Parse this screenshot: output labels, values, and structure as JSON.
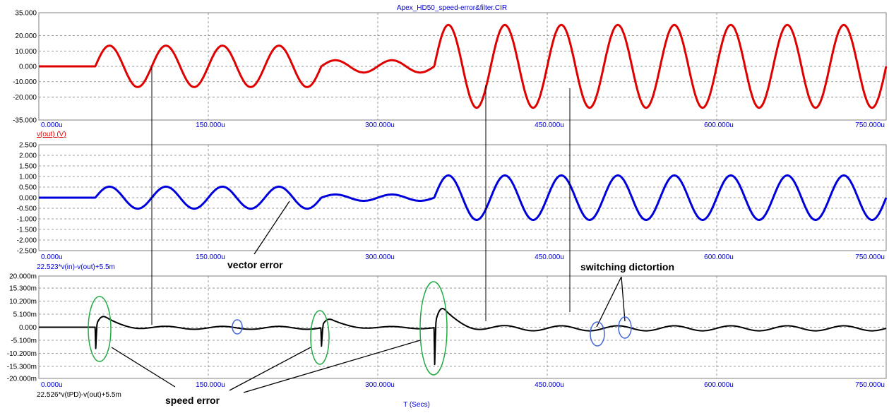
{
  "window": {
    "title": "Apex_HD50_speed-error&filter.CIR",
    "x_axis_label": "T (Secs)"
  },
  "annotations": {
    "vector_error": "vector error",
    "switching_distortion": "switching dictortion",
    "speed_error": "speed error"
  },
  "colors": {
    "trace1": "#e00000",
    "trace2": "#0000dd",
    "trace3": "#000000",
    "tick_blue": "#0000cc",
    "circle_green": "#22aa44",
    "circle_blue": "#4466dd"
  },
  "chart_data": [
    {
      "type": "line",
      "name": "v(out) (V)",
      "color": "#e00000",
      "x_unit": "s",
      "xlim": [
        0,
        0.00075
      ],
      "xticks": [
        "0.000u",
        "150.000u",
        "300.000u",
        "450.000u",
        "600.000u",
        "750.000u"
      ],
      "ylim": [
        -35,
        35
      ],
      "yticks": [
        "35.000",
        "20.000",
        "10.000",
        "0.000",
        "-10.000",
        "-20.000",
        "-35.000"
      ],
      "ytick_values": [
        35,
        20,
        10,
        0,
        -10,
        -20,
        -35
      ],
      "signal": [
        {
          "from": 0,
          "to": 5e-05,
          "kind": "flat",
          "amplitude": 0,
          "period": 5e-05
        },
        {
          "from": 5e-05,
          "to": 0.00025,
          "kind": "sine",
          "amplitude": 13.5,
          "period": 5e-05
        },
        {
          "from": 0.00025,
          "to": 0.00035,
          "kind": "sine",
          "amplitude": 4,
          "period": 5e-05
        },
        {
          "from": 0.00035,
          "to": 0.00075,
          "kind": "sine",
          "amplitude": 27,
          "period": 5e-05
        }
      ],
      "grid": true
    },
    {
      "type": "line",
      "name": "22.523*v(in)-v(out)+5.5m",
      "color": "#0000dd",
      "x_unit": "s",
      "xlim": [
        0,
        0.00075
      ],
      "xticks": [
        "0.000u",
        "150.000u",
        "300.000u",
        "450.000u",
        "600.000u",
        "750.000u"
      ],
      "ylim": [
        -2.5,
        2.5
      ],
      "yticks": [
        "2.500",
        "2.000",
        "1.500",
        "1.000",
        "0.500",
        "0.000",
        "-0.500",
        "-1.000",
        "-1.500",
        "-2.000",
        "-2.500"
      ],
      "ytick_values": [
        2.5,
        2.0,
        1.5,
        1.0,
        0.5,
        0.0,
        -0.5,
        -1.0,
        -1.5,
        -2.0,
        -2.5
      ],
      "signal": [
        {
          "from": 0,
          "to": 5e-05,
          "kind": "flat",
          "amplitude": 0,
          "period": 5e-05
        },
        {
          "from": 5e-05,
          "to": 0.00025,
          "kind": "sine",
          "amplitude": 0.52,
          "period": 5e-05
        },
        {
          "from": 0.00025,
          "to": 0.00035,
          "kind": "sine",
          "amplitude": 0.15,
          "period": 5e-05
        },
        {
          "from": 0.00035,
          "to": 0.00075,
          "kind": "sine",
          "amplitude": 1.05,
          "period": 5e-05
        }
      ],
      "grid": true
    },
    {
      "type": "line",
      "name": "22.526*v(tPD)-v(out)+5.5m",
      "color": "#000000",
      "x_unit": "s",
      "xlim": [
        0,
        0.00075
      ],
      "xticks": [
        "0.000u",
        "150.000u",
        "300.000u",
        "450.000u",
        "600.000u",
        "750.000u"
      ],
      "ylim": [
        -0.02,
        0.02
      ],
      "yticks": [
        "20.000m",
        "15.300m",
        "10.200m",
        "5.100m",
        "0.000",
        "-5.100m",
        "-10.200m",
        "-15.300m",
        "-20.000m"
      ],
      "ytick_values": [
        0.02,
        0.0153,
        0.0102,
        0.0051,
        0,
        -0.0051,
        -0.0102,
        -0.0153,
        -0.02
      ],
      "signal": [
        {
          "from": 0,
          "to": 5e-05,
          "kind": "flat",
          "amplitude": 0,
          "period": 5e-05
        },
        {
          "from": 5e-05,
          "to": 0.00025,
          "kind": "settle",
          "amplitude": 0.008,
          "period": 5e-05
        },
        {
          "from": 0.00025,
          "to": 0.00035,
          "kind": "settle",
          "amplitude": 0.006,
          "period": 5e-05
        },
        {
          "from": 0.00035,
          "to": 0.00075,
          "kind": "settle",
          "amplitude": 0.014,
          "period": 5e-05
        }
      ],
      "grid": true
    }
  ]
}
